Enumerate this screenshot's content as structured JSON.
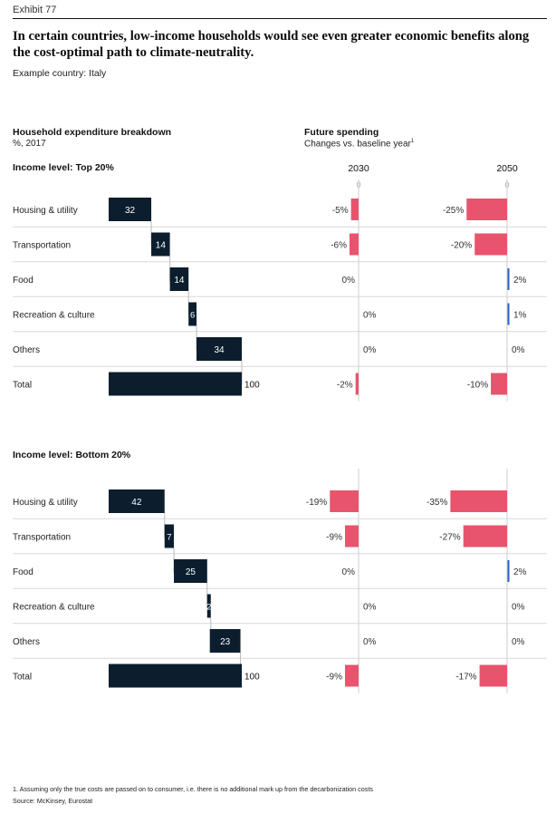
{
  "header": {
    "exhibit": "Exhibit 77",
    "title": "In certain countries, low-income households would see even greater economic benefits along the cost-optimal path to climate-neutrality.",
    "subtitle": "Example country: Italy"
  },
  "columns": {
    "left_title": "Household expenditure breakdown",
    "left_subtitle": "%, 2017",
    "right_title": "Future spending",
    "right_subtitle": "Changes vs. baseline year",
    "right_footnote_marker": "1",
    "year_a": "2030",
    "year_b": "2050",
    "zero_label": "0"
  },
  "colors": {
    "navy": "#0c1e2e",
    "negative": "#e8546e",
    "positive": "#2f5fd0",
    "grid": "#cccccc"
  },
  "chart_data": [
    {
      "type": "bar",
      "panel": "Income level: Top 20%",
      "categories": [
        "Housing & utility",
        "Transportation",
        "Food",
        "Recreation & culture",
        "Others",
        "Total"
      ],
      "breakdown": [
        32,
        14,
        14,
        6,
        34,
        100
      ],
      "breakdown_labels": [
        "32",
        "14",
        "14",
        "6",
        "34",
        "100"
      ],
      "series": [
        {
          "name": "2030",
          "values": [
            -5,
            -6,
            0,
            0,
            0,
            -2
          ],
          "labels": [
            "-5%",
            "-6%",
            "0%",
            "0%",
            "0%",
            "-2%"
          ]
        },
        {
          "name": "2050",
          "values": [
            -25,
            -20,
            2,
            1,
            0,
            -10
          ],
          "labels": [
            "-25%",
            "-20%",
            "2%",
            "1%",
            "0%",
            "-10%"
          ]
        }
      ]
    },
    {
      "type": "bar",
      "panel": "Income level: Bottom 20%",
      "categories": [
        "Housing & utility",
        "Transportation",
        "Food",
        "Recreation & culture",
        "Others",
        "Total"
      ],
      "breakdown": [
        42,
        7,
        25,
        2,
        23,
        100
      ],
      "breakdown_labels": [
        "42",
        "7",
        "25",
        "2",
        "23",
        "100"
      ],
      "series": [
        {
          "name": "2030",
          "values": [
            -19,
            -9,
            0,
            0,
            0,
            -9
          ],
          "labels": [
            "-19%",
            "-9%",
            "0%",
            "0%",
            "0%",
            "-9%"
          ]
        },
        {
          "name": "2050",
          "values": [
            -35,
            -27,
            2,
            0,
            0,
            -17
          ],
          "labels": [
            "-35%",
            "-27%",
            "2%",
            "0%",
            "0%",
            "-17%"
          ]
        }
      ]
    }
  ],
  "footer": {
    "footnote": "1. Assuming only the true costs are passed on to consumer, i.e. there is no additional mark up from the decarbonization costs",
    "source": "Source: McKinsey, Eurostat"
  }
}
